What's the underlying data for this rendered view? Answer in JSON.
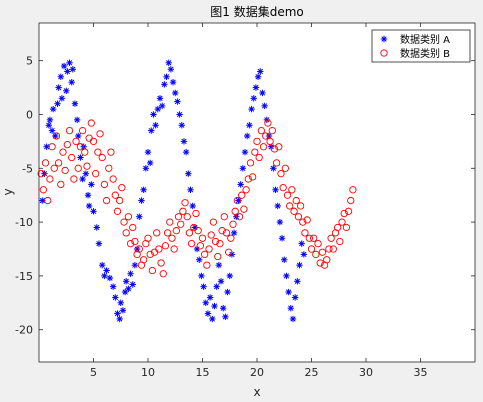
{
  "chart_data": {
    "type": "scatter",
    "title": "图1 数据集demo",
    "xlabel": "x",
    "ylabel": "y",
    "xlim": [
      0,
      40
    ],
    "ylim": [
      -23,
      8.5
    ],
    "xticks": [
      5,
      10,
      15,
      20,
      25,
      30,
      35
    ],
    "yticks": [
      5,
      0,
      -5,
      -10,
      -15,
      -20
    ],
    "grid": false,
    "legend_position": "top-right",
    "series": [
      {
        "name": "数据类别 A",
        "marker": "asterisk",
        "color": "#0000ff",
        "points": [
          [
            0.3,
            -8
          ],
          [
            0.5,
            -5.5
          ],
          [
            0.7,
            -3
          ],
          [
            0.9,
            -1
          ],
          [
            1.0,
            -0.5
          ],
          [
            1.2,
            -1.5
          ],
          [
            1.3,
            0.5
          ],
          [
            1.5,
            -2
          ],
          [
            1.7,
            1
          ],
          [
            1.8,
            2.5
          ],
          [
            2.0,
            3.5
          ],
          [
            2.1,
            1.5
          ],
          [
            2.3,
            4.5
          ],
          [
            2.5,
            2.2
          ],
          [
            2.6,
            4
          ],
          [
            2.8,
            4.8
          ],
          [
            3.0,
            3
          ],
          [
            3.1,
            4.2
          ],
          [
            3.3,
            1
          ],
          [
            3.5,
            -0.5
          ],
          [
            3.6,
            -2
          ],
          [
            3.8,
            -4
          ],
          [
            4.0,
            -6
          ],
          [
            4.1,
            -3
          ],
          [
            4.3,
            -5.5
          ],
          [
            4.5,
            -7.5
          ],
          [
            4.6,
            -8.5
          ],
          [
            4.8,
            -6.5
          ],
          [
            5.0,
            -9
          ],
          [
            5.3,
            -10.5
          ],
          [
            5.5,
            -12
          ],
          [
            5.8,
            -14
          ],
          [
            6.0,
            -15
          ],
          [
            6.2,
            -14.5
          ],
          [
            6.5,
            -15.2
          ],
          [
            6.8,
            -16
          ],
          [
            7.0,
            -17
          ],
          [
            7.2,
            -18.5
          ],
          [
            7.4,
            -19
          ],
          [
            7.5,
            -17.5
          ],
          [
            7.7,
            -18.2
          ],
          [
            7.9,
            -16.5
          ],
          [
            8.0,
            -15.5
          ],
          [
            8.2,
            -16.2
          ],
          [
            8.4,
            -14.8
          ],
          [
            8.6,
            -15.8
          ],
          [
            8.8,
            -14
          ],
          [
            9.0,
            -12.5
          ],
          [
            9.2,
            -9.5
          ],
          [
            9.4,
            -8
          ],
          [
            9.6,
            -7
          ],
          [
            9.8,
            -5
          ],
          [
            10.0,
            -3.5
          ],
          [
            10.2,
            -4.5
          ],
          [
            10.3,
            -1.5
          ],
          [
            10.5,
            0
          ],
          [
            10.7,
            -1
          ],
          [
            10.9,
            0.5
          ],
          [
            11.1,
            1.5
          ],
          [
            11.3,
            0.8
          ],
          [
            11.5,
            2.8
          ],
          [
            11.7,
            3.5
          ],
          [
            11.9,
            4.8
          ],
          [
            12.1,
            4.2
          ],
          [
            12.3,
            3
          ],
          [
            12.5,
            2
          ],
          [
            12.7,
            1.2
          ],
          [
            12.9,
            0
          ],
          [
            13.1,
            -1
          ],
          [
            13.3,
            -2.5
          ],
          [
            13.5,
            -3.5
          ],
          [
            13.7,
            -5.5
          ],
          [
            13.9,
            -7
          ],
          [
            14.1,
            -8.5
          ],
          [
            14.3,
            -10.5
          ],
          [
            14.5,
            -12.5
          ],
          [
            14.7,
            -13.5
          ],
          [
            14.9,
            -15
          ],
          [
            15.1,
            -16
          ],
          [
            15.3,
            -17.5
          ],
          [
            15.5,
            -18.5
          ],
          [
            15.7,
            -17
          ],
          [
            15.9,
            -19
          ],
          [
            16.1,
            -17.8
          ],
          [
            16.3,
            -16
          ],
          [
            16.5,
            -14
          ],
          [
            16.7,
            -15.5
          ],
          [
            16.9,
            -18
          ],
          [
            17.1,
            -18.8
          ],
          [
            17.3,
            -16.5
          ],
          [
            17.5,
            -15
          ],
          [
            17.7,
            -13
          ],
          [
            17.9,
            -11
          ],
          [
            18.1,
            -9.5
          ],
          [
            18.3,
            -8
          ],
          [
            18.5,
            -6.5
          ],
          [
            18.7,
            -5
          ],
          [
            18.9,
            -3.5
          ],
          [
            19.1,
            -2
          ],
          [
            19.3,
            -1
          ],
          [
            19.5,
            0.5
          ],
          [
            19.7,
            1.5
          ],
          [
            19.9,
            2.5
          ],
          [
            20.1,
            3.5
          ],
          [
            20.3,
            4
          ],
          [
            20.5,
            2
          ],
          [
            20.7,
            0.8
          ],
          [
            20.9,
            -0.5
          ],
          [
            21.1,
            -2
          ],
          [
            21.3,
            -3
          ],
          [
            21.5,
            -5
          ],
          [
            21.7,
            -7
          ],
          [
            21.9,
            -8.5
          ],
          [
            22.1,
            -10
          ],
          [
            22.3,
            -11.5
          ],
          [
            22.5,
            -13.5
          ],
          [
            22.7,
            -15
          ],
          [
            22.9,
            -16.5
          ],
          [
            23.1,
            -18
          ],
          [
            23.3,
            -19
          ],
          [
            23.5,
            -17
          ],
          [
            23.7,
            -15.5
          ],
          [
            23.9,
            -14
          ],
          [
            24.1,
            -12
          ],
          [
            24.3,
            -13
          ]
        ]
      },
      {
        "name": "数据类别 B",
        "marker": "circle",
        "color": "#ff0000",
        "points": [
          [
            0.2,
            -5.5
          ],
          [
            0.4,
            -7
          ],
          [
            0.6,
            -4.5
          ],
          [
            0.8,
            -8
          ],
          [
            1.0,
            -6
          ],
          [
            1.2,
            -3
          ],
          [
            1.4,
            -5
          ],
          [
            1.6,
            -2
          ],
          [
            1.8,
            -4.5
          ],
          [
            2.0,
            -6.5
          ],
          [
            2.2,
            -3.5
          ],
          [
            2.4,
            -5.2
          ],
          [
            2.6,
            -2.8
          ],
          [
            2.8,
            -1.5
          ],
          [
            3.0,
            -4
          ],
          [
            3.2,
            -6
          ],
          [
            3.4,
            -2.5
          ],
          [
            3.6,
            -5
          ],
          [
            3.8,
            -3
          ],
          [
            4.0,
            -1.5
          ],
          [
            4.2,
            -3.5
          ],
          [
            4.4,
            -4.8
          ],
          [
            4.6,
            -2.2
          ],
          [
            4.8,
            -0.8
          ],
          [
            5.0,
            -2.5
          ],
          [
            5.2,
            -5.5
          ],
          [
            5.4,
            -3.5
          ],
          [
            5.6,
            -1.8
          ],
          [
            5.8,
            -4
          ],
          [
            6.0,
            -6.5
          ],
          [
            6.2,
            -8
          ],
          [
            6.4,
            -5
          ],
          [
            6.6,
            -3.5
          ],
          [
            6.8,
            -6
          ],
          [
            7.0,
            -7.5
          ],
          [
            7.2,
            -9
          ],
          [
            7.4,
            -8
          ],
          [
            7.6,
            -6.8
          ],
          [
            7.8,
            -10
          ],
          [
            8.0,
            -11
          ],
          [
            8.2,
            -9.5
          ],
          [
            8.4,
            -12
          ],
          [
            8.6,
            -10.5
          ],
          [
            8.8,
            -11.8
          ],
          [
            9.0,
            -13
          ],
          [
            9.2,
            -12.5
          ],
          [
            9.4,
            -14
          ],
          [
            9.6,
            -13.5
          ],
          [
            9.8,
            -12
          ],
          [
            10.0,
            -11.5
          ],
          [
            10.2,
            -13
          ],
          [
            10.4,
            -14.5
          ],
          [
            10.6,
            -12.8
          ],
          [
            10.8,
            -11
          ],
          [
            11.0,
            -12.5
          ],
          [
            11.2,
            -13.8
          ],
          [
            11.4,
            -14.8
          ],
          [
            11.6,
            -12.2
          ],
          [
            11.8,
            -11
          ],
          [
            12.0,
            -10
          ],
          [
            12.2,
            -11.5
          ],
          [
            12.4,
            -12.5
          ],
          [
            12.6,
            -10.8
          ],
          [
            12.8,
            -9.5
          ],
          [
            13.0,
            -10.2
          ],
          [
            13.2,
            -9
          ],
          [
            13.4,
            -8.2
          ],
          [
            13.6,
            -9.5
          ],
          [
            13.8,
            -11
          ],
          [
            14.0,
            -12
          ],
          [
            14.2,
            -10.5
          ],
          [
            14.4,
            -9.2
          ],
          [
            14.6,
            -10.8
          ],
          [
            14.8,
            -12.2
          ],
          [
            15.0,
            -11.5
          ],
          [
            15.2,
            -13
          ],
          [
            15.4,
            -14
          ],
          [
            15.6,
            -12.5
          ],
          [
            15.8,
            -11.2
          ],
          [
            16.0,
            -10
          ],
          [
            16.2,
            -11.8
          ],
          [
            16.4,
            -13.2
          ],
          [
            16.6,
            -12
          ],
          [
            16.8,
            -10.8
          ],
          [
            17.0,
            -9.5
          ],
          [
            17.2,
            -11
          ],
          [
            17.4,
            -12.8
          ],
          [
            17.6,
            -11.5
          ],
          [
            17.8,
            -10.2
          ],
          [
            18.0,
            -9
          ],
          [
            18.2,
            -8
          ],
          [
            18.4,
            -9.5
          ],
          [
            18.6,
            -7.5
          ],
          [
            18.8,
            -8.8
          ],
          [
            19.0,
            -7
          ],
          [
            19.2,
            -6
          ],
          [
            19.4,
            -4.5
          ],
          [
            19.6,
            -5.8
          ],
          [
            19.8,
            -3.5
          ],
          [
            20.0,
            -2.5
          ],
          [
            20.2,
            -4
          ],
          [
            20.4,
            -1.5
          ],
          [
            20.6,
            -3
          ],
          [
            20.8,
            -2
          ],
          [
            21.0,
            -0.8
          ],
          [
            21.2,
            -2.5
          ],
          [
            21.4,
            -1.5
          ],
          [
            21.6,
            -3.2
          ],
          [
            21.8,
            -4.5
          ],
          [
            22.0,
            -3
          ],
          [
            22.2,
            -5.5
          ],
          [
            22.4,
            -6.8
          ],
          [
            22.6,
            -5
          ],
          [
            22.8,
            -7.5
          ],
          [
            23.0,
            -8.5
          ],
          [
            23.2,
            -7
          ],
          [
            23.4,
            -9
          ],
          [
            23.6,
            -8
          ],
          [
            23.8,
            -9.5
          ],
          [
            24.0,
            -8.5
          ],
          [
            24.2,
            -10
          ],
          [
            24.4,
            -11
          ],
          [
            24.6,
            -9.8
          ],
          [
            24.8,
            -11.5
          ],
          [
            25.0,
            -12.5
          ],
          [
            25.2,
            -11.5
          ],
          [
            25.4,
            -13
          ],
          [
            25.6,
            -12
          ],
          [
            25.8,
            -13.8
          ],
          [
            26.0,
            -12.8
          ],
          [
            26.2,
            -14
          ],
          [
            26.4,
            -13.5
          ],
          [
            26.6,
            -12.5
          ],
          [
            26.8,
            -11.5
          ],
          [
            27.0,
            -12.5
          ],
          [
            27.2,
            -11
          ],
          [
            27.4,
            -10.5
          ],
          [
            27.6,
            -11.8
          ],
          [
            27.8,
            -10
          ],
          [
            28.0,
            -9.2
          ],
          [
            28.2,
            -10.5
          ],
          [
            28.4,
            -9
          ],
          [
            28.6,
            -8
          ],
          [
            28.8,
            -7
          ]
        ]
      }
    ]
  }
}
